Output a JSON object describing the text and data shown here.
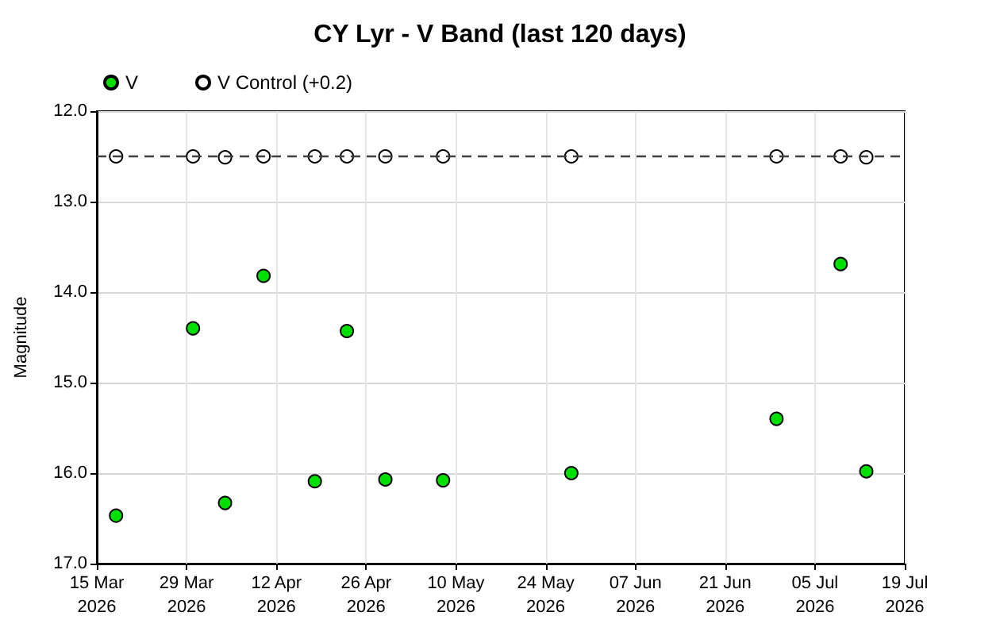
{
  "chart_data": {
    "type": "scatter",
    "title": "CY Lyr - V Band (last 120 days)",
    "ylabel": "Magnitude",
    "x": [
      "2026-03-18",
      "2026-03-30",
      "2026-04-04",
      "2026-04-10",
      "2026-04-18",
      "2026-04-23",
      "2026-04-29",
      "2026-05-08",
      "2026-05-28",
      "2026-06-29",
      "2026-07-09",
      "2026-07-13"
    ],
    "series": [
      {
        "name": "V",
        "color": "#00e000",
        "values": [
          16.47,
          14.4,
          16.33,
          13.82,
          16.09,
          14.43,
          16.07,
          16.08,
          16.0,
          15.4,
          13.69,
          15.98
        ]
      },
      {
        "name": "V Control (+0.2)",
        "color": "#ffffff",
        "values": [
          12.5,
          12.5,
          12.51,
          12.5,
          12.5,
          12.5,
          12.5,
          12.5,
          12.5,
          12.5,
          12.5,
          12.51
        ]
      }
    ],
    "xlim": [
      "2026-03-15",
      "2026-07-19"
    ],
    "xticks": [
      {
        "value": "2026-03-15",
        "label": "15 Mar\n2026"
      },
      {
        "value": "2026-03-29",
        "label": "29 Mar\n2026"
      },
      {
        "value": "2026-04-12",
        "label": "12 Apr\n2026"
      },
      {
        "value": "2026-04-26",
        "label": "26 Apr\n2026"
      },
      {
        "value": "2026-05-10",
        "label": "10 May\n2026"
      },
      {
        "value": "2026-05-24",
        "label": "24 May\n2026"
      },
      {
        "value": "2026-06-07",
        "label": "07 Jun\n2026"
      },
      {
        "value": "2026-06-21",
        "label": "21 Jun\n2026"
      },
      {
        "value": "2026-07-05",
        "label": "05 Jul\n2026"
      },
      {
        "value": "2026-07-19",
        "label": "19 Jul\n2026"
      }
    ],
    "ylim": [
      17,
      12
    ],
    "yticks": [
      {
        "value": 12,
        "label": "12.0"
      },
      {
        "value": 13,
        "label": "13.0"
      },
      {
        "value": 14,
        "label": "14.0"
      },
      {
        "value": 15,
        "label": "15.0"
      },
      {
        "value": 16,
        "label": "16.0"
      },
      {
        "value": 17,
        "label": "17.0"
      }
    ],
    "ref_lines": [
      {
        "axis": "y",
        "value": 12.5,
        "color": "#404040",
        "line_style": "dashed"
      }
    ],
    "grid": true,
    "legend": "top left",
    "marker": "circle"
  }
}
